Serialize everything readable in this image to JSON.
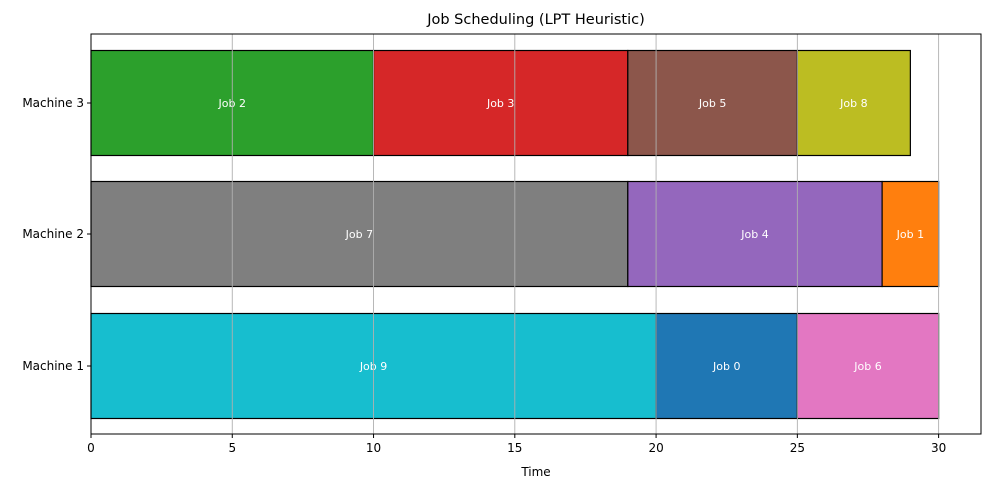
{
  "chart_data": {
    "type": "bar",
    "orientation": "horizontal",
    "subtype": "gantt",
    "title": "Job Scheduling (LPT Heuristic)",
    "xlabel": "Time",
    "ylabel": "",
    "xlim": [
      0,
      31.5
    ],
    "xticks": [
      0,
      5,
      10,
      15,
      20,
      25,
      30
    ],
    "grid": "vertical",
    "categories": [
      "Machine 1",
      "Machine 2",
      "Machine 3"
    ],
    "tasks": [
      {
        "machine": "Machine 1",
        "label": "Job 9",
        "start": 0,
        "end": 20,
        "color": "#17becf"
      },
      {
        "machine": "Machine 1",
        "label": "Job 0",
        "start": 20,
        "end": 25,
        "color": "#1f77b4"
      },
      {
        "machine": "Machine 1",
        "label": "Job 6",
        "start": 25,
        "end": 30,
        "color": "#e377c2"
      },
      {
        "machine": "Machine 2",
        "label": "Job 7",
        "start": 0,
        "end": 19,
        "color": "#7f7f7f"
      },
      {
        "machine": "Machine 2",
        "label": "Job 4",
        "start": 19,
        "end": 28,
        "color": "#9467bd"
      },
      {
        "machine": "Machine 2",
        "label": "Job 1",
        "start": 28,
        "end": 30,
        "color": "#ff7f0e"
      },
      {
        "machine": "Machine 3",
        "label": "Job 2",
        "start": 0,
        "end": 10,
        "color": "#2ca02c"
      },
      {
        "machine": "Machine 3",
        "label": "Job 3",
        "start": 10,
        "end": 19,
        "color": "#d62728"
      },
      {
        "machine": "Machine 3",
        "label": "Job 5",
        "start": 19,
        "end": 25,
        "color": "#8c564b"
      },
      {
        "machine": "Machine 3",
        "label": "Job 8",
        "start": 25,
        "end": 29,
        "color": "#bcbd22"
      }
    ]
  }
}
